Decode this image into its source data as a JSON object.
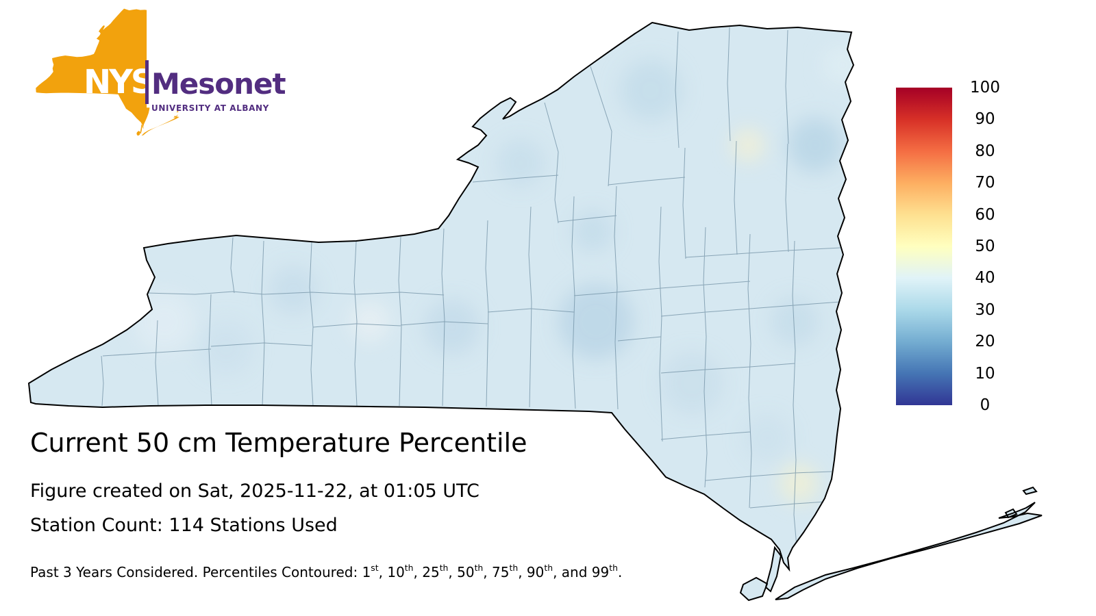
{
  "logo": {
    "nys": "NYS",
    "mesonet": "Mesonet",
    "tagline": "UNIVERSITY AT ALBANY",
    "state_color": "#F2A20D",
    "purple": "#522D80"
  },
  "title": "Current 50 cm Temperature Percentile",
  "created_line": "Figure created on Sat, 2025-11-22, at 01:05 UTC",
  "station_line": "Station Count: 114 Stations Used",
  "footnote": {
    "prefix": "Past 3 Years Considered. Percentiles Contoured: ",
    "percentiles": [
      {
        "value": "1",
        "suffix": "st"
      },
      {
        "value": "10",
        "suffix": "th"
      },
      {
        "value": "25",
        "suffix": "th"
      },
      {
        "value": "50",
        "suffix": "th"
      },
      {
        "value": "75",
        "suffix": "th"
      },
      {
        "value": "90",
        "suffix": "th"
      },
      {
        "value": "99",
        "suffix": "th"
      }
    ],
    "separator": ", ",
    "final_separator": ", and ",
    "terminator": "."
  },
  "colorbar": {
    "ticks": [
      "100",
      "90",
      "80",
      "70",
      "60",
      "50",
      "40",
      "30",
      "20",
      "10",
      "0"
    ],
    "colors_top_to_bottom": [
      "#a50026",
      "#d73027",
      "#f46d43",
      "#fdae61",
      "#fee090",
      "#ffffbf",
      "#e0f3f8",
      "#abd9e9",
      "#74add1",
      "#4575b4",
      "#313695"
    ]
  },
  "map": {
    "region": "New York State with county boundaries",
    "base_fill_color": "#d6e8f1",
    "county_line_color": "#6d8ea2",
    "outline_color": "#000000"
  }
}
